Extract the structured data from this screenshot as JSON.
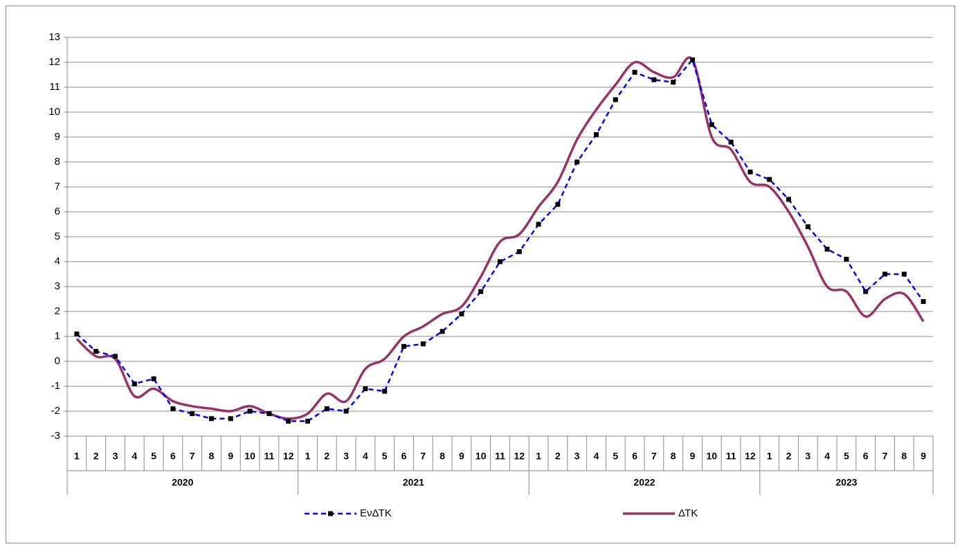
{
  "chart_data": {
    "type": "line",
    "groups": [
      {
        "name": "2020",
        "categories": [
          "1",
          "2",
          "3",
          "4",
          "5",
          "6",
          "7",
          "8",
          "9",
          "10",
          "11",
          "12"
        ]
      },
      {
        "name": "2021",
        "categories": [
          "1",
          "2",
          "3",
          "4",
          "5",
          "6",
          "7",
          "8",
          "9",
          "10",
          "11",
          "12"
        ]
      },
      {
        "name": "2022",
        "categories": [
          "1",
          "2",
          "3",
          "4",
          "5",
          "6",
          "7",
          "8",
          "9",
          "10",
          "11",
          "12"
        ]
      },
      {
        "name": "2023",
        "categories": [
          "1",
          "2",
          "3",
          "4",
          "5",
          "6",
          "7",
          "8",
          "9"
        ]
      }
    ],
    "series": [
      {
        "name": "ΕνΔΤΚ",
        "color": "#0000ff",
        "style": "dashed",
        "marker": "square",
        "values": [
          1.1,
          0.4,
          0.2,
          -0.9,
          -0.7,
          -1.9,
          -2.1,
          -2.3,
          -2.3,
          -2.0,
          -2.1,
          -2.4,
          -2.4,
          -1.9,
          -2.0,
          -1.1,
          -1.2,
          0.6,
          0.7,
          1.2,
          1.9,
          2.8,
          4.0,
          4.4,
          5.5,
          6.3,
          8.0,
          9.1,
          10.5,
          11.6,
          11.3,
          11.2,
          12.1,
          9.5,
          8.8,
          7.6,
          7.3,
          6.5,
          5.4,
          4.5,
          4.1,
          2.8,
          3.5,
          3.5,
          2.4
        ]
      },
      {
        "name": "ΔΤΚ",
        "color": "#993366",
        "style": "smooth",
        "values": [
          0.9,
          0.2,
          0.1,
          -1.4,
          -1.1,
          -1.6,
          -1.8,
          -1.9,
          -2.0,
          -1.8,
          -2.1,
          -2.3,
          -2.1,
          -1.3,
          -1.6,
          -0.3,
          0.1,
          1.0,
          1.4,
          1.9,
          2.2,
          3.4,
          4.8,
          5.1,
          6.2,
          7.2,
          8.9,
          10.1,
          11.1,
          12.0,
          11.6,
          11.4,
          12.1,
          9.0,
          8.5,
          7.2,
          7.0,
          6.0,
          4.6,
          3.0,
          2.8,
          1.8,
          2.5,
          2.7,
          1.6
        ]
      }
    ],
    "ylim": [
      -3,
      13
    ],
    "yticks": [
      -3,
      -2,
      -1,
      0,
      1,
      2,
      3,
      4,
      5,
      6,
      7,
      8,
      9,
      10,
      11,
      12,
      13
    ],
    "grid": true,
    "legend": "bottom"
  }
}
